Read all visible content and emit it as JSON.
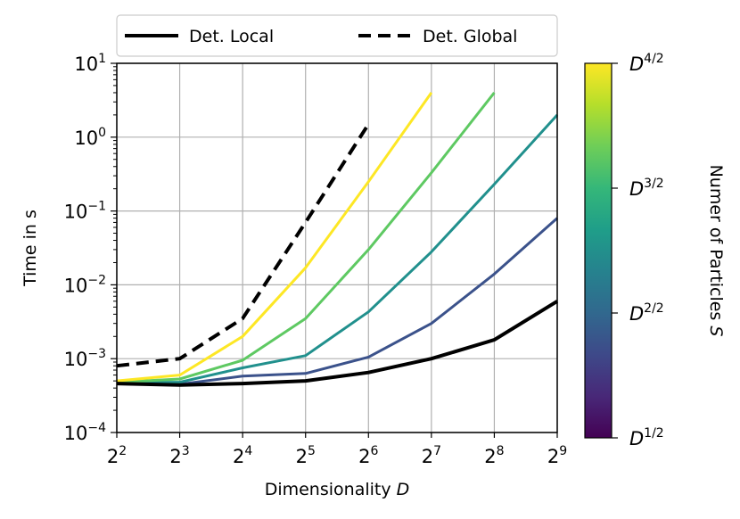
{
  "chart_data": {
    "type": "line",
    "xlabel": "Dimensionality",
    "xlabel_var": "D",
    "ylabel": "Time in s",
    "x_scale": "log2",
    "y_scale": "log10",
    "xlim": [
      4,
      512
    ],
    "ylim": [
      0.0001,
      10
    ],
    "grid": true,
    "legend_position": "top",
    "x": [
      4,
      8,
      16,
      32,
      64,
      128,
      256,
      512
    ],
    "x_tick_labels": [
      {
        "base": "2",
        "exp": "2"
      },
      {
        "base": "2",
        "exp": "3"
      },
      {
        "base": "2",
        "exp": "4"
      },
      {
        "base": "2",
        "exp": "5"
      },
      {
        "base": "2",
        "exp": "6"
      },
      {
        "base": "2",
        "exp": "7"
      },
      {
        "base": "2",
        "exp": "8"
      },
      {
        "base": "2",
        "exp": "9"
      }
    ],
    "y_ticks": [
      0.0001,
      0.001,
      0.01,
      0.1,
      1,
      10
    ],
    "y_tick_labels": [
      {
        "base": "10",
        "exp": "−4"
      },
      {
        "base": "10",
        "exp": "−3"
      },
      {
        "base": "10",
        "exp": "−2"
      },
      {
        "base": "10",
        "exp": "−1"
      },
      {
        "base": "10",
        "exp": "0"
      },
      {
        "base": "10",
        "exp": "1"
      }
    ],
    "series": [
      {
        "name": "Det. Local",
        "color": "#000000",
        "dash": false,
        "width": 4,
        "values": [
          0.00046,
          0.00044,
          0.00046,
          0.0005,
          0.00065,
          0.001,
          0.0018,
          0.006
        ]
      },
      {
        "name": "Det. Global",
        "color": "#000000",
        "dash": true,
        "width": 4,
        "values": [
          0.0008,
          0.001,
          0.0035,
          0.07,
          1.5,
          null,
          null,
          null
        ]
      },
      {
        "color": "#3b528b",
        "dash": false,
        "width": 3,
        "values": [
          0.00048,
          0.00045,
          0.00058,
          0.00063,
          0.00105,
          0.003,
          0.014,
          0.08
        ]
      },
      {
        "color": "#21908d",
        "dash": false,
        "width": 3,
        "values": [
          0.00048,
          0.00048,
          0.00075,
          0.0011,
          0.0043,
          0.028,
          0.23,
          2.0
        ]
      },
      {
        "color": "#5ec962",
        "dash": false,
        "width": 3,
        "values": [
          0.00048,
          0.00053,
          0.00095,
          0.0035,
          0.03,
          0.33,
          4.0,
          null
        ]
      },
      {
        "color": "#fde725",
        "dash": false,
        "width": 3,
        "values": [
          0.0005,
          0.0006,
          0.002,
          0.017,
          0.25,
          4.0,
          null,
          null
        ]
      }
    ],
    "colorbar": {
      "label": "Numer of Particles",
      "label_var": "S",
      "colormap": [
        "#440154",
        "#482878",
        "#3e4989",
        "#31688e",
        "#26828e",
        "#1f9e89",
        "#35b779",
        "#6ece58",
        "#b5de2b",
        "#fde725"
      ],
      "ticks": [
        {
          "base": "D",
          "exp": "1/2"
        },
        {
          "base": "D",
          "exp": "2/2"
        },
        {
          "base": "D",
          "exp": "3/2"
        },
        {
          "base": "D",
          "exp": "4/2"
        }
      ]
    }
  }
}
